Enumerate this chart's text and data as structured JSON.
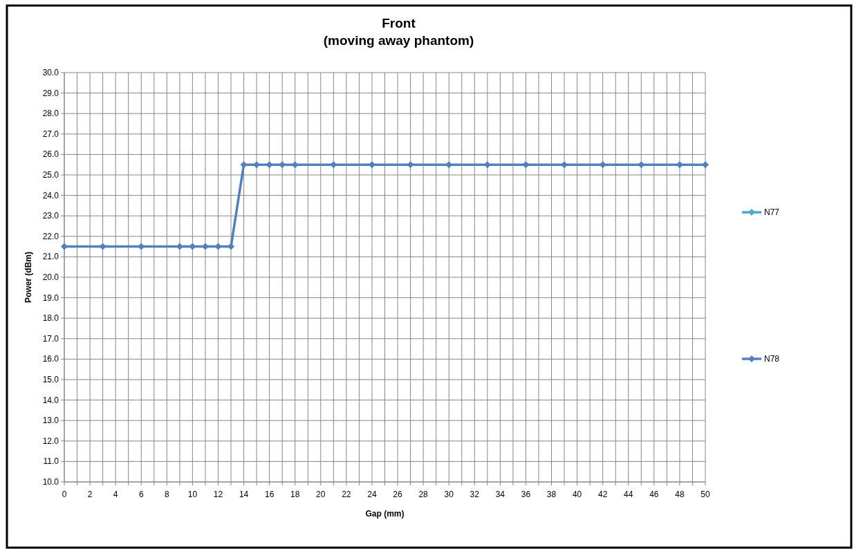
{
  "chart_data": {
    "type": "line",
    "title": "Front\n(moving away phantom)",
    "xlabel": "Gap (mm)",
    "ylabel": "Power (dBm)",
    "x": [
      0,
      3,
      6,
      9,
      10,
      11,
      12,
      13,
      14,
      15,
      16,
      17,
      18,
      21,
      24,
      27,
      30,
      33,
      36,
      39,
      42,
      45,
      48,
      50
    ],
    "series": [
      {
        "name": "N77",
        "color": "#4bacc6",
        "values": [
          null,
          null,
          null,
          null,
          null,
          null,
          null,
          null,
          null,
          null,
          null,
          null,
          null,
          null,
          null,
          null,
          null,
          null,
          null,
          null,
          null,
          null,
          null,
          null
        ]
      },
      {
        "name": "N78",
        "color": "#4f81bd",
        "values": [
          21.5,
          21.5,
          21.5,
          21.5,
          21.5,
          21.5,
          21.5,
          21.5,
          25.5,
          25.5,
          25.5,
          25.5,
          25.5,
          25.5,
          25.5,
          25.5,
          25.5,
          25.5,
          25.5,
          25.5,
          25.5,
          25.5,
          25.5,
          25.5
        ]
      }
    ],
    "xlim": [
      0,
      50
    ],
    "xticks": [
      0,
      {
        "value": 1,
        "label": null
      },
      2,
      {
        "value": 3,
        "label": null
      },
      4,
      {
        "value": 5,
        "label": null
      },
      6,
      {
        "value": 7,
        "label": null
      },
      8,
      {
        "value": 9,
        "label": null
      },
      10,
      {
        "value": 11,
        "label": null
      },
      12,
      {
        "value": 13,
        "label": null
      },
      14,
      {
        "value": 15,
        "label": null
      },
      16,
      {
        "value": 17,
        "label": null
      },
      18,
      {
        "value": 19,
        "label": null
      },
      20,
      {
        "value": 21,
        "label": null
      },
      22,
      {
        "value": 23,
        "label": null
      },
      24,
      {
        "value": 25,
        "label": null
      },
      26,
      {
        "value": 27,
        "label": null
      },
      28,
      {
        "value": 29,
        "label": null
      },
      30,
      {
        "value": 31,
        "label": null
      },
      32,
      {
        "value": 33,
        "label": null
      },
      34,
      {
        "value": 35,
        "label": null
      },
      36,
      {
        "value": 37,
        "label": null
      },
      38,
      {
        "value": 39,
        "label": null
      },
      40,
      {
        "value": 41,
        "label": null
      },
      42,
      {
        "value": 43,
        "label": null
      },
      44,
      {
        "value": 45,
        "label": null
      },
      46,
      {
        "value": 47,
        "label": null
      },
      48,
      {
        "value": 49,
        "label": null
      },
      50
    ],
    "ylim": [
      10,
      30
    ],
    "yticks": [
      {
        "value": 10,
        "label": "10.0"
      },
      {
        "value": 11,
        "label": "11.0"
      },
      {
        "value": 12,
        "label": "12.0"
      },
      {
        "value": 13,
        "label": "13.0"
      },
      {
        "value": 14,
        "label": "14.0"
      },
      {
        "value": 15,
        "label": "15.0"
      },
      {
        "value": 16,
        "label": "16.0"
      },
      {
        "value": 17,
        "label": "17.0"
      },
      {
        "value": 18,
        "label": "18.0"
      },
      {
        "value": 19,
        "label": "19.0"
      },
      {
        "value": 20,
        "label": "20.0"
      },
      {
        "value": 21,
        "label": "21.0"
      },
      {
        "value": 22,
        "label": "22.0"
      },
      {
        "value": 23,
        "label": "23.0"
      },
      {
        "value": 24,
        "label": "24.0"
      },
      {
        "value": 25,
        "label": "25.0"
      },
      {
        "value": 26,
        "label": "26.0"
      },
      {
        "value": 27,
        "label": "27.0"
      },
      {
        "value": 28,
        "label": "28.0"
      },
      {
        "value": 29,
        "label": "29.0"
      },
      {
        "value": 30,
        "label": "30.0"
      }
    ],
    "grid": true,
    "legend": "right",
    "marker": "diamond",
    "line_style": "solid"
  }
}
